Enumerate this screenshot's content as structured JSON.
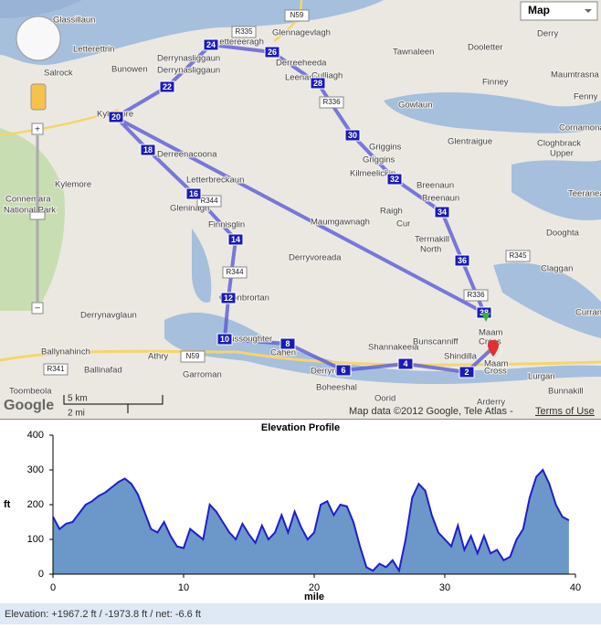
{
  "map": {
    "type_button": "Map",
    "places": [
      "Glassillaun",
      "Lettereeragh",
      "Glennagevlagh",
      "Tawnaleen",
      "Dooletter",
      "Derry",
      "Letterettrin",
      "Bunowen",
      "Derrynasliggaun",
      "Derrynasliggaun",
      "Salrock",
      "Derreeheeda",
      "Leenaun",
      "Culliagh",
      "Finney",
      "Maumtrasna",
      "Kylemore",
      "Gowlaun",
      "Glentraigue",
      "Griggins",
      "Griggins",
      "Kilmeelickin",
      "Breenaun",
      "Breenaun",
      "Raigh",
      "Maumgawnagh",
      "Cur",
      "Terrnakill",
      "North",
      "Gleninagh",
      "Letterbreckaun",
      "Finnisglin",
      "Derryvoreada",
      "Kylemore",
      "Connemara",
      "National Park",
      "Derrynavglaun",
      "Cloonbrortan",
      "Maussoughter",
      "Cahen",
      "Shannakeela",
      "Bunscanniff",
      "Shindilla",
      "Ballynahinch",
      "Ballinafad",
      "Athry",
      "Garroman",
      "Derryneen",
      "Boheeshal",
      "Oorid",
      "Toombeola",
      "Lurgan",
      "Bunnakill",
      "Arderry",
      "Maam",
      "Cross",
      "Maam",
      "Cross",
      "Dooghta",
      "Claggan",
      "Teeranea",
      "Cloghbrack",
      "Upper",
      "Derreenacoona",
      "Cornamona",
      "Currane",
      "Fenny"
    ],
    "roads": [
      "R335",
      "N59",
      "R336",
      "R344",
      "R344",
      "R345",
      "R336",
      "R341",
      "N59"
    ],
    "markers": [
      "2",
      "4",
      "6",
      "8",
      "10",
      "12",
      "14",
      "16",
      "18",
      "20",
      "22",
      "24",
      "26",
      "28",
      "30",
      "32",
      "34",
      "36",
      "38"
    ],
    "scale_km": "5 km",
    "scale_mi": "2 mi",
    "logo": "Google",
    "attribution": "Map data ©2012 Google, Tele Atlas - ",
    "terms": "Terms of Use"
  },
  "chart_data": {
    "type": "area",
    "title": "Elevation Profile",
    "x_label": "mile",
    "y_label": "ft",
    "color": "#6b97c9",
    "line_color": "#1f1fc8",
    "x": [
      0,
      0.5,
      1,
      1.5,
      2,
      2.5,
      3,
      3.5,
      4,
      4.5,
      5,
      5.5,
      6,
      6.5,
      7,
      7.5,
      8,
      8.5,
      9,
      9.5,
      10,
      10.5,
      11,
      11.5,
      12,
      12.5,
      13,
      13.5,
      14,
      14.5,
      15,
      15.5,
      16,
      16.5,
      17,
      17.5,
      18,
      18.5,
      19,
      19.5,
      20,
      20.5,
      21,
      21.5,
      22,
      22.5,
      23,
      23.5,
      24,
      24.5,
      25,
      25.5,
      26,
      26.5,
      27,
      27.5,
      28,
      28.5,
      29,
      29.5,
      30,
      30.5,
      31,
      31.5,
      32,
      32.5,
      33,
      33.5,
      34,
      34.5,
      35,
      35.5,
      36,
      36.5,
      37,
      37.5,
      38,
      38.5,
      39,
      39.5
    ],
    "values": [
      165,
      130,
      145,
      150,
      175,
      200,
      210,
      225,
      235,
      250,
      265,
      275,
      260,
      230,
      180,
      130,
      120,
      150,
      110,
      80,
      75,
      130,
      115,
      100,
      200,
      180,
      150,
      120,
      100,
      145,
      115,
      90,
      140,
      100,
      120,
      170,
      120,
      180,
      135,
      100,
      120,
      200,
      210,
      170,
      200,
      195,
      150,
      80,
      20,
      10,
      30,
      20,
      40,
      10,
      100,
      220,
      260,
      240,
      170,
      120,
      100,
      80,
      140,
      70,
      110,
      60,
      110,
      60,
      70,
      40,
      50,
      100,
      130,
      220,
      280,
      300,
      260,
      200,
      165,
      155
    ],
    "xlim": [
      0,
      40
    ],
    "ylim": [
      0,
      400
    ],
    "xticks": [
      0,
      10,
      20,
      30,
      40
    ],
    "yticks": [
      0,
      100,
      200,
      300,
      400
    ],
    "grid": false
  },
  "footer": "Elevation: +1967.2 ft / -1973.8 ft / net: -6.6 ft"
}
